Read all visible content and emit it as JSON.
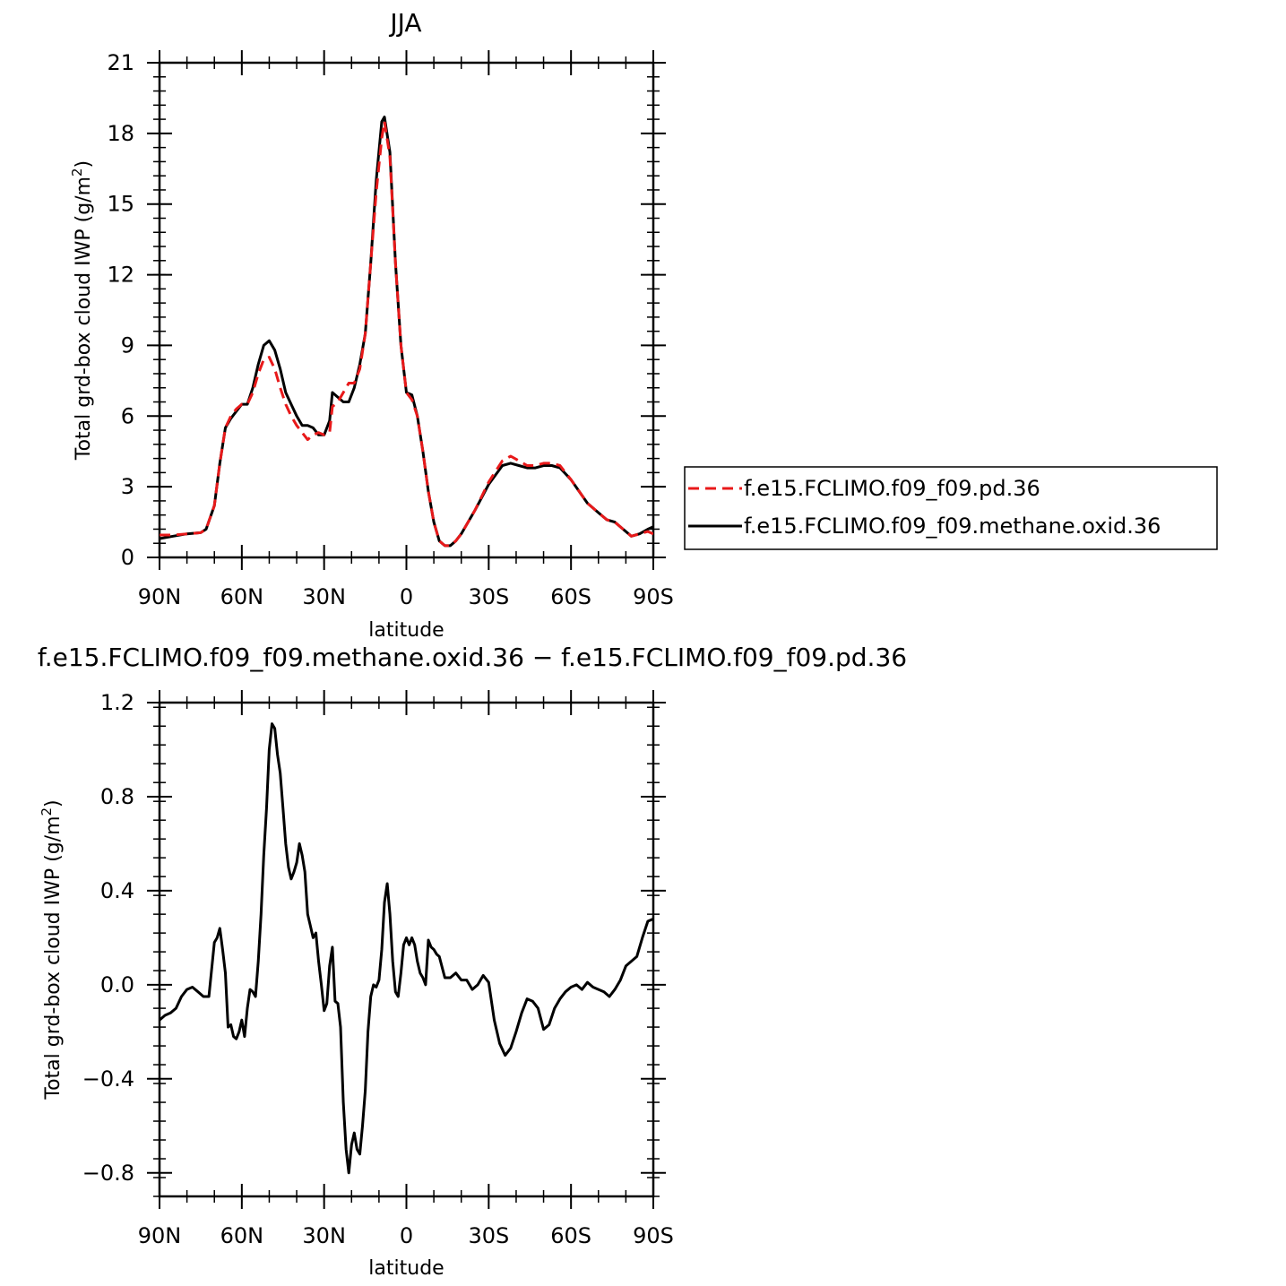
{
  "chart_data": [
    {
      "type": "line",
      "title": "JJA",
      "xlabel": "latitude",
      "ylabel_main": "Total grd-box cloud IWP (g/m",
      "ylabel_sup": "2",
      "ylabel_close": ")",
      "xlim": [
        -90,
        90
      ],
      "ylim": [
        0,
        21
      ],
      "xticks": [
        -90,
        -60,
        -30,
        0,
        30,
        60,
        90
      ],
      "xtick_labels": [
        "90N",
        "60N",
        "30N",
        "0",
        "30S",
        "60S",
        "90S"
      ],
      "yticks": [
        0,
        3,
        6,
        9,
        12,
        15,
        18,
        21
      ],
      "ytick_labels": [
        "0",
        "3",
        "6",
        "9",
        "12",
        "15",
        "18",
        "21"
      ],
      "legend_position": "right",
      "series": [
        {
          "name": "f.e15.FCLIMO.f09_f09.pd.36",
          "color": "#e8191a",
          "dash": "dashed",
          "x": [
            -90,
            -85,
            -80,
            -75,
            -73,
            -70,
            -68,
            -66,
            -64,
            -62,
            -60,
            -58,
            -56,
            -54,
            -52,
            -50,
            -48,
            -46,
            -44,
            -42,
            -40,
            -38,
            -36,
            -34,
            -32,
            -30,
            -28,
            -27,
            -25,
            -23,
            -21,
            -19,
            -17,
            -15,
            -13,
            -11,
            -9,
            -8,
            -6,
            -4,
            -2,
            0,
            2,
            4,
            6,
            8,
            10,
            12,
            14,
            16,
            18,
            20,
            25,
            30,
            35,
            38,
            41,
            44,
            47,
            50,
            53,
            56,
            60,
            63,
            66,
            70,
            73,
            76,
            79,
            82,
            85,
            88,
            90
          ],
          "y": [
            0.95,
            0.95,
            1.0,
            1.05,
            1.2,
            2.2,
            4.0,
            5.5,
            6.0,
            6.3,
            6.5,
            6.5,
            7.0,
            7.8,
            8.4,
            8.5,
            8.0,
            7.2,
            6.5,
            6.0,
            5.6,
            5.3,
            5.0,
            5.2,
            5.3,
            5.2,
            5.3,
            6.4,
            6.6,
            7.0,
            7.4,
            7.4,
            8.0,
            9.5,
            12.5,
            15.5,
            17.8,
            18.5,
            17.0,
            12.5,
            9.0,
            7.0,
            6.7,
            6.0,
            4.5,
            2.8,
            1.5,
            0.7,
            0.5,
            0.5,
            0.7,
            1.0,
            2.0,
            3.2,
            4.1,
            4.3,
            4.1,
            3.9,
            3.9,
            4.0,
            4.0,
            3.9,
            3.3,
            2.8,
            2.3,
            1.9,
            1.6,
            1.5,
            1.2,
            0.9,
            1.0,
            1.1,
            1.0
          ]
        },
        {
          "name": "f.e15.FCLIMO.f09_f09.methane.oxid.36",
          "color": "#000000",
          "dash": "solid",
          "x": [
            -90,
            -85,
            -80,
            -75,
            -73,
            -70,
            -68,
            -66,
            -64,
            -62,
            -60,
            -58,
            -56,
            -54,
            -52,
            -50,
            -48,
            -46,
            -44,
            -42,
            -40,
            -38,
            -36,
            -34,
            -32,
            -30,
            -28,
            -27,
            -25,
            -23,
            -21,
            -19,
            -17,
            -15,
            -13,
            -11,
            -9,
            -8,
            -6,
            -4,
            -2,
            0,
            2,
            4,
            6,
            8,
            10,
            12,
            14,
            16,
            18,
            20,
            25,
            30,
            35,
            38,
            41,
            44,
            47,
            50,
            53,
            56,
            60,
            63,
            66,
            70,
            73,
            76,
            79,
            82,
            85,
            88,
            90
          ],
          "y": [
            0.8,
            0.9,
            1.0,
            1.05,
            1.2,
            2.2,
            4.0,
            5.5,
            5.9,
            6.2,
            6.5,
            6.5,
            7.2,
            8.2,
            9.0,
            9.2,
            8.8,
            8.0,
            7.0,
            6.5,
            6.0,
            5.6,
            5.6,
            5.5,
            5.2,
            5.2,
            5.8,
            7.0,
            6.8,
            6.6,
            6.6,
            7.2,
            8.2,
            9.5,
            12.5,
            16.0,
            18.5,
            18.7,
            17.2,
            12.5,
            9.0,
            7.0,
            6.9,
            6.0,
            4.5,
            2.8,
            1.5,
            0.7,
            0.5,
            0.5,
            0.7,
            1.0,
            2.0,
            3.1,
            3.9,
            4.0,
            3.9,
            3.8,
            3.8,
            3.9,
            3.9,
            3.8,
            3.3,
            2.8,
            2.3,
            1.9,
            1.6,
            1.5,
            1.2,
            0.9,
            1.0,
            1.2,
            1.3
          ]
        }
      ]
    },
    {
      "type": "line",
      "title": "f.e15.FCLIMO.f09_f09.methane.oxid.36 − f.e15.FCLIMO.f09_f09.pd.36",
      "xlabel": "latitude",
      "ylabel_main": "Total grd-box cloud IWP (g/m",
      "ylabel_sup": "2",
      "ylabel_close": ")",
      "xlim": [
        -90,
        90
      ],
      "ylim": [
        -0.9,
        1.2
      ],
      "xticks": [
        -90,
        -60,
        -30,
        0,
        30,
        60,
        90
      ],
      "xtick_labels": [
        "90N",
        "60N",
        "30N",
        "0",
        "30S",
        "60S",
        "90S"
      ],
      "yticks": [
        1.2,
        0.8,
        0.4,
        0.0,
        -0.4,
        -0.8
      ],
      "ytick_labels": [
        "1.2",
        "0.8",
        "0.4",
        "0.0",
        "−0.4",
        "−0.8"
      ],
      "series": [
        {
          "name": "",
          "color": "#000000",
          "dash": "solid",
          "x": [
            -90,
            -88,
            -86,
            -84,
            -82,
            -80,
            -78,
            -76,
            -74,
            -72,
            -70,
            -69,
            -68,
            -67,
            -66,
            -65,
            -64,
            -63,
            -62,
            -61,
            -60,
            -59,
            -58,
            -57,
            -56,
            -55,
            -54,
            -53,
            -52,
            -51,
            -50,
            -49,
            -48,
            -47,
            -46,
            -45,
            -44,
            -43,
            -42,
            -41,
            -40,
            -39,
            -38,
            -37,
            -36,
            -35,
            -34,
            -33,
            -32,
            -31,
            -30,
            -29,
            -28,
            -27,
            -26,
            -25,
            -24,
            -23,
            -22,
            -21,
            -20,
            -19,
            -18,
            -17,
            -16,
            -15,
            -14,
            -13,
            -12,
            -11,
            -10,
            -9,
            -8,
            -7,
            -6,
            -5,
            -4,
            -3,
            -2,
            -1,
            0,
            1,
            2,
            3,
            4,
            5,
            6,
            7,
            8,
            9,
            10,
            11,
            12,
            14,
            16,
            18,
            20,
            22,
            24,
            26,
            28,
            30,
            32,
            34,
            36,
            38,
            40,
            42,
            44,
            46,
            48,
            50,
            52,
            54,
            56,
            58,
            60,
            62,
            64,
            66,
            68,
            70,
            72,
            74,
            76,
            78,
            80,
            82,
            84,
            86,
            88,
            90
          ],
          "y": [
            -0.15,
            -0.13,
            -0.12,
            -0.1,
            -0.05,
            -0.02,
            -0.01,
            -0.03,
            -0.05,
            -0.05,
            0.18,
            0.2,
            0.24,
            0.15,
            0.05,
            -0.18,
            -0.17,
            -0.22,
            -0.23,
            -0.2,
            -0.15,
            -0.22,
            -0.1,
            -0.02,
            -0.03,
            -0.05,
            0.1,
            0.3,
            0.55,
            0.75,
            1.0,
            1.11,
            1.09,
            0.98,
            0.9,
            0.75,
            0.6,
            0.5,
            0.45,
            0.48,
            0.52,
            0.6,
            0.55,
            0.48,
            0.3,
            0.25,
            0.2,
            0.22,
            0.1,
            0.0,
            -0.11,
            -0.08,
            0.08,
            0.16,
            -0.07,
            -0.08,
            -0.18,
            -0.5,
            -0.7,
            -0.8,
            -0.68,
            -0.63,
            -0.7,
            -0.72,
            -0.6,
            -0.45,
            -0.2,
            -0.05,
            0.0,
            -0.01,
            0.02,
            0.15,
            0.35,
            0.43,
            0.3,
            0.1,
            -0.03,
            -0.05,
            0.05,
            0.17,
            0.2,
            0.17,
            0.2,
            0.17,
            0.1,
            0.05,
            0.03,
            0.0,
            0.19,
            0.16,
            0.15,
            0.13,
            0.12,
            0.03,
            0.03,
            0.05,
            0.02,
            0.02,
            -0.02,
            0.0,
            0.04,
            0.01,
            -0.15,
            -0.25,
            -0.3,
            -0.27,
            -0.2,
            -0.12,
            -0.06,
            -0.07,
            -0.1,
            -0.19,
            -0.17,
            -0.1,
            -0.06,
            -0.03,
            -0.01,
            0.0,
            -0.02,
            0.01,
            -0.01,
            -0.02,
            -0.03,
            -0.05,
            -0.02,
            0.02,
            0.08,
            0.1,
            0.12,
            0.2,
            0.27,
            0.28
          ]
        }
      ]
    }
  ]
}
